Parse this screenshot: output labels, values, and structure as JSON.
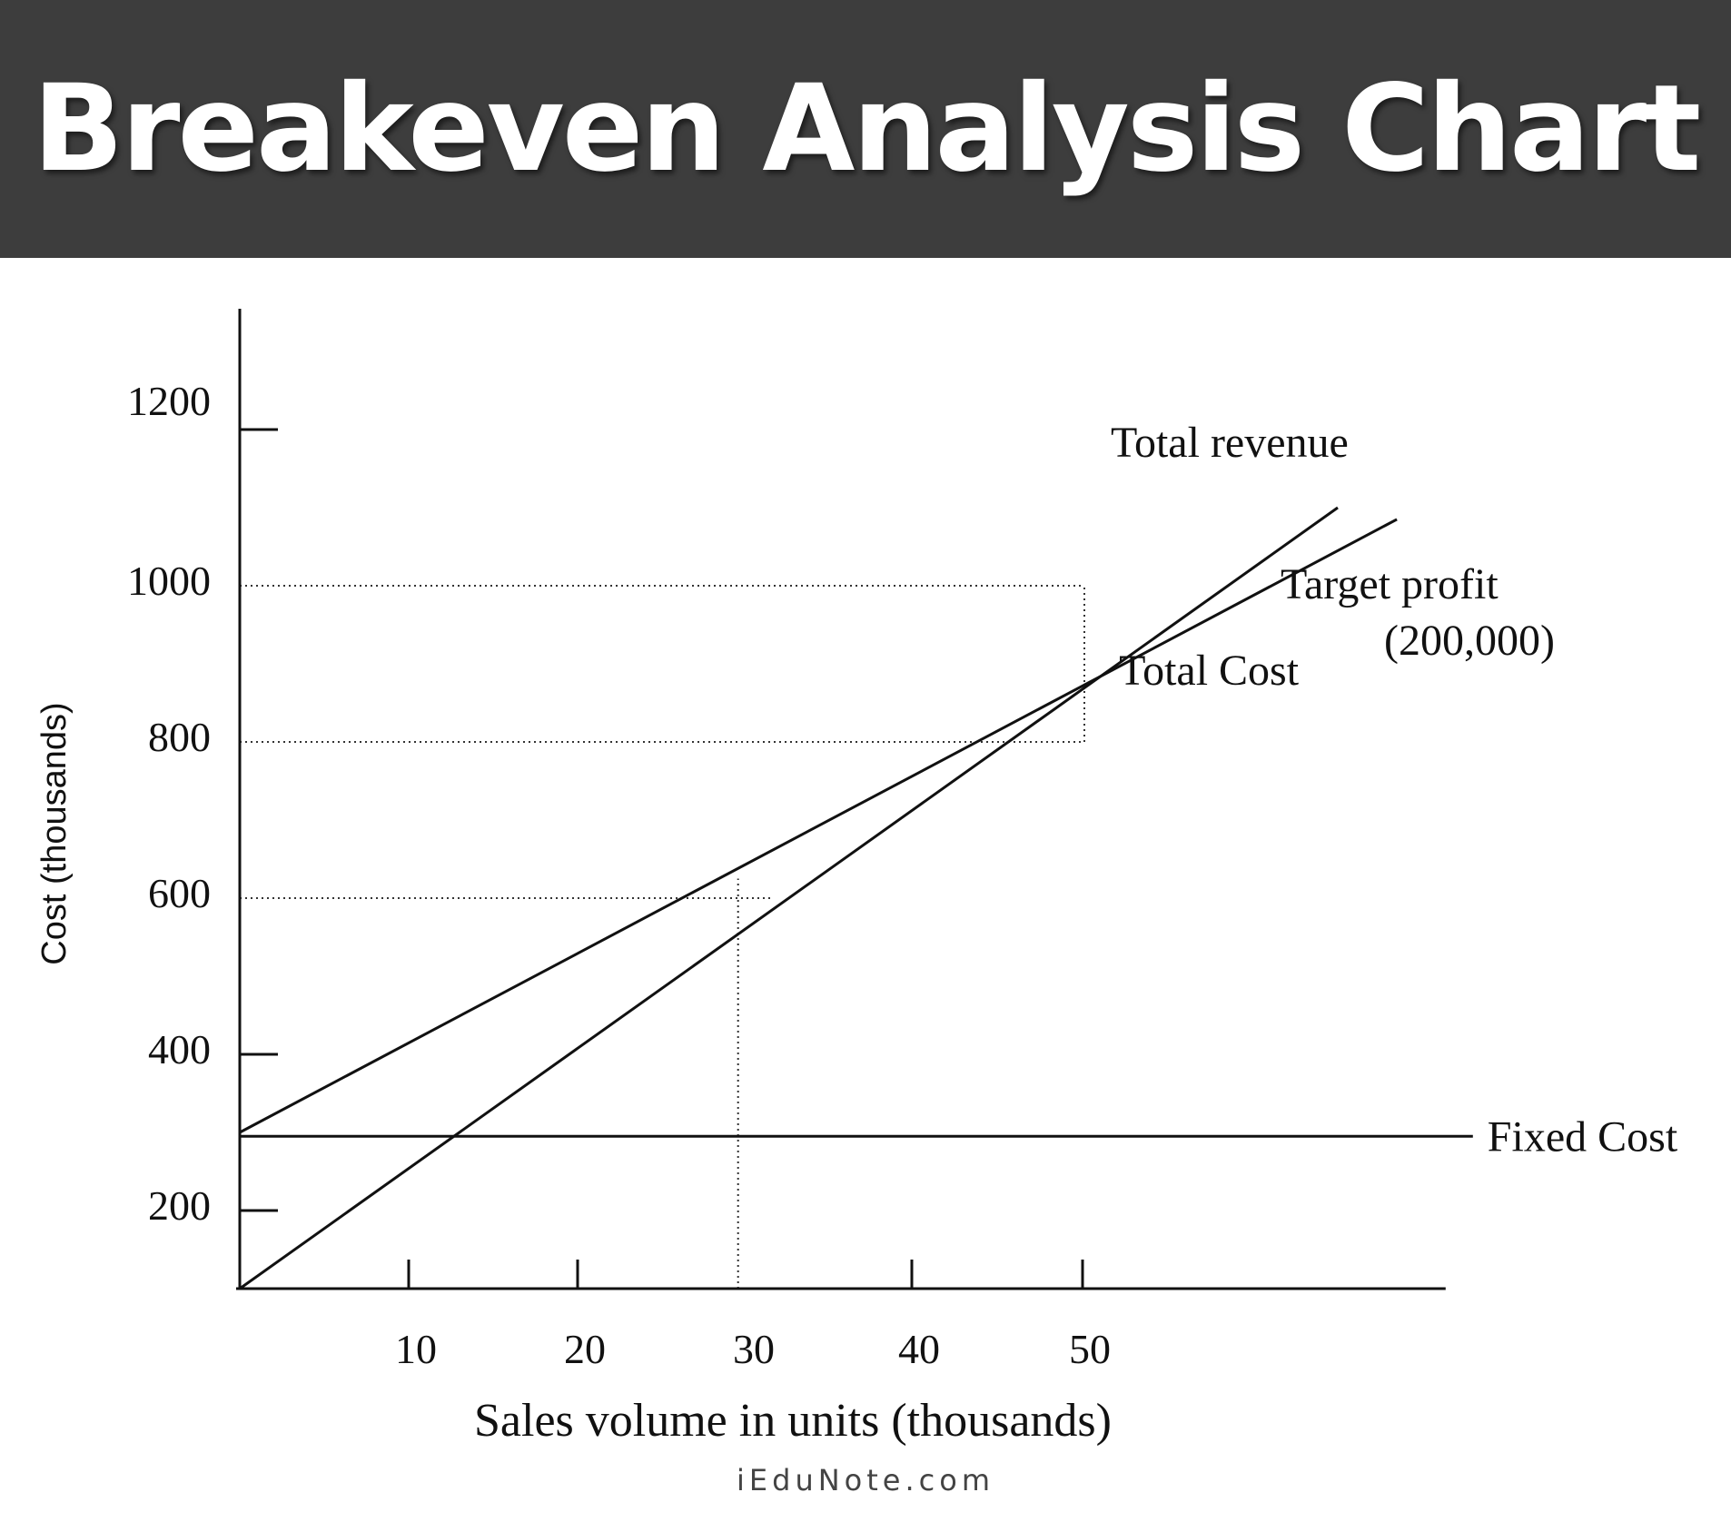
{
  "header": {
    "title": "Breakeven Analysis Chart"
  },
  "footer": {
    "credit": "iEduNote.com"
  },
  "colors": {
    "banner": "#3d3d3d",
    "title_text": "#ffffff",
    "lines": "#111111"
  },
  "chart_data": {
    "type": "line",
    "title": "Breakeven Analysis Chart",
    "xlabel": "Sales volume in units (thousands)",
    "ylabel": "Cost (thousands)",
    "x_ticks": [
      10,
      20,
      30,
      40,
      50
    ],
    "y_ticks": [
      200,
      400,
      600,
      800,
      1000,
      1200
    ],
    "xlim": [
      0,
      73
    ],
    "ylim": [
      100,
      1400
    ],
    "grid": false,
    "series": [
      {
        "name": "Total revenue",
        "x": [
          0,
          65
        ],
        "y": [
          100,
          1100
        ]
      },
      {
        "name": "Total Cost",
        "x": [
          0,
          68.5
        ],
        "y": [
          300,
          1085
        ]
      },
      {
        "name": "Fixed Cost",
        "x": [
          0,
          73
        ],
        "y": [
          295,
          295
        ]
      }
    ],
    "annotations": [
      {
        "text": "Target profit",
        "x": 50,
        "y": 1160
      },
      {
        "text": "(200,000)",
        "x": 50,
        "y": 1085
      }
    ],
    "guides": [
      {
        "from": [
          0,
          1000
        ],
        "to": [
          50,
          1000
        ]
      },
      {
        "from": [
          0,
          800
        ],
        "to": [
          50,
          800
        ]
      },
      {
        "from": [
          50,
          800
        ],
        "to": [
          50,
          1000
        ]
      },
      {
        "from": [
          0,
          600
        ],
        "to": [
          31.5,
          600
        ]
      },
      {
        "from": [
          29.5,
          100
        ],
        "to": [
          29.5,
          625
        ]
      }
    ]
  }
}
